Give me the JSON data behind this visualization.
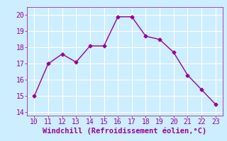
{
  "x": [
    10,
    11,
    12,
    13,
    14,
    15,
    16,
    17,
    18,
    19,
    20,
    21,
    22,
    23
  ],
  "y": [
    15.0,
    17.0,
    17.6,
    17.1,
    18.1,
    18.1,
    19.9,
    19.9,
    18.7,
    18.5,
    17.7,
    16.3,
    15.4,
    14.5
  ],
  "line_color": "#990099",
  "marker": "D",
  "marker_size": 2.5,
  "bg_color": "#cceeff",
  "grid_color": "#ffffff",
  "xlabel": "Windchill (Refroidissement éolien,°C)",
  "xlabel_color": "#990099",
  "xlabel_fontsize": 7.5,
  "tick_color": "#990099",
  "tick_fontsize": 7,
  "xlim": [
    9.5,
    23.5
  ],
  "ylim": [
    13.8,
    20.5
  ],
  "yticks": [
    14,
    15,
    16,
    17,
    18,
    19,
    20
  ],
  "xticks": [
    10,
    11,
    12,
    13,
    14,
    15,
    16,
    17,
    18,
    19,
    20,
    21,
    22,
    23
  ]
}
